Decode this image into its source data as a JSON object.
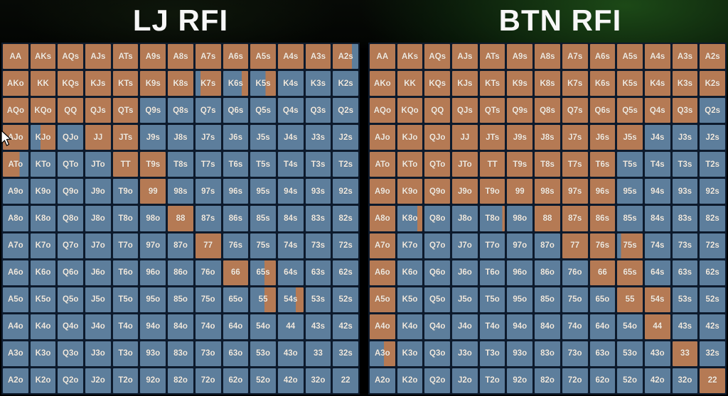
{
  "page": {
    "background": "#000000",
    "glow_color": "#1e5420"
  },
  "colors": {
    "raise": "#b57a54",
    "fold": "#5d7e9c",
    "grid_line": "#0d1a2c",
    "title_text": "#f7f7f7",
    "cell_text": "#f1eae0"
  },
  "cell_encoding": {
    "R": "raise (orange)",
    "F": "fold (blue)",
    "format": "hand|base or hand|base/stripColor:stripSide:stripFraction"
  },
  "chart_data": [
    {
      "type": "heatmap",
      "title": "LJ RFI",
      "rows": [
        [
          "AA|R",
          "AKs|R",
          "AQs|R",
          "AJs|R",
          "ATs|R",
          "A9s|R",
          "A8s|R",
          "A7s|R",
          "A6s|R",
          "A5s|R",
          "A4s|R",
          "A3s|R",
          "A2s|R/F:right:0.25"
        ],
        [
          "AKo|R",
          "KK|R",
          "KQs|R",
          "KJs|R",
          "KTs|R",
          "K9s|R",
          "K8s|R",
          "K7s|R/F:left:0.2",
          "K6s|F/R:right:0.25",
          "K5s|F/R:right:0.4",
          "K4s|F",
          "K3s|F",
          "K2s|F"
        ],
        [
          "AQo|R",
          "KQo|R",
          "QQ|R",
          "QJs|R",
          "QTs|R",
          "Q9s|F",
          "Q8s|F",
          "Q7s|F",
          "Q6s|F",
          "Q5s|F",
          "Q4s|F",
          "Q3s|F",
          "Q2s|F"
        ],
        [
          "AJo|R",
          "KJo|R/F:left:0.4",
          "QJo|F",
          "JJ|R",
          "JTs|R",
          "J9s|F",
          "J8s|F",
          "J7s|F",
          "J6s|F",
          "J5s|F",
          "J4s|F",
          "J3s|F",
          "J2s|F"
        ],
        [
          "ATo|R/F:right:0.35",
          "KTo|F",
          "QTo|F",
          "JTo|F",
          "TT|R",
          "T9s|R",
          "T8s|F",
          "T7s|F",
          "T6s|F",
          "T5s|F",
          "T4s|F",
          "T3s|F",
          "T2s|F"
        ],
        [
          "A9o|F",
          "K9o|F",
          "Q9o|F",
          "J9o|F",
          "T9o|F",
          "99|R",
          "98s|F",
          "97s|F",
          "96s|F",
          "95s|F",
          "94s|F",
          "93s|F",
          "92s|F"
        ],
        [
          "A8o|F",
          "K8o|F",
          "Q8o|F",
          "J8o|F",
          "T8o|F",
          "98o|F",
          "88|R",
          "87s|F",
          "86s|F",
          "85s|F",
          "84s|F",
          "83s|F",
          "82s|F"
        ],
        [
          "A7o|F",
          "K7o|F",
          "Q7o|F",
          "J7o|F",
          "T7o|F",
          "97o|F",
          "87o|F",
          "77|R",
          "76s|F",
          "75s|F",
          "74s|F",
          "73s|F",
          "72s|F"
        ],
        [
          "A6o|F",
          "K6o|F",
          "Q6o|F",
          "J6o|F",
          "T6o|F",
          "96o|F",
          "86o|F",
          "76o|F",
          "66|R",
          "65s|F/R:right:0.45",
          "64s|F",
          "63s|F",
          "62s|F"
        ],
        [
          "A5o|F",
          "K5o|F",
          "Q5o|F",
          "J5o|F",
          "T5o|F",
          "95o|F",
          "85o|F",
          "75o|F",
          "65o|F",
          "55|F/R:right:0.45",
          "54s|F/R:right:0.3",
          "53s|F",
          "52s|F"
        ],
        [
          "A4o|F",
          "K4o|F",
          "Q4o|F",
          "J4o|F",
          "T4o|F",
          "94o|F",
          "84o|F",
          "74o|F",
          "64o|F",
          "54o|F",
          "44|F",
          "43s|F",
          "42s|F"
        ],
        [
          "A3o|F",
          "K3o|F",
          "Q3o|F",
          "J3o|F",
          "T3o|F",
          "93o|F",
          "83o|F",
          "73o|F",
          "63o|F",
          "53o|F",
          "43o|F",
          "33|F",
          "32s|F"
        ],
        [
          "A2o|F",
          "K2o|F",
          "Q2o|F",
          "J2o|F",
          "T2o|F",
          "92o|F",
          "82o|F",
          "72o|F",
          "62o|F",
          "52o|F",
          "42o|F",
          "32o|F",
          "22|F"
        ]
      ]
    },
    {
      "type": "heatmap",
      "title": "BTN RFI",
      "rows": [
        [
          "AA|R",
          "AKs|R",
          "AQs|R",
          "AJs|R",
          "ATs|R",
          "A9s|R",
          "A8s|R",
          "A7s|R",
          "A6s|R",
          "A5s|R",
          "A4s|R",
          "A3s|R",
          "A2s|R"
        ],
        [
          "AKo|R",
          "KK|R",
          "KQs|R",
          "KJs|R",
          "KTs|R",
          "K9s|R",
          "K8s|R",
          "K7s|R",
          "K6s|R",
          "K5s|R",
          "K4s|R",
          "K3s|R",
          "K2s|R"
        ],
        [
          "AQo|R",
          "KQo|R",
          "QQ|R",
          "QJs|R",
          "QTs|R",
          "Q9s|R",
          "Q8s|R",
          "Q7s|R",
          "Q6s|R",
          "Q5s|R",
          "Q4s|R",
          "Q3s|R",
          "Q2s|F"
        ],
        [
          "AJo|R",
          "KJo|R",
          "QJo|R",
          "JJ|R",
          "JTs|R",
          "J9s|R",
          "J8s|R",
          "J7s|R",
          "J6s|R",
          "J5s|R",
          "J4s|F",
          "J3s|F",
          "J2s|F"
        ],
        [
          "ATo|R",
          "KTo|R",
          "QTo|R",
          "JTo|R",
          "TT|R",
          "T9s|R",
          "T8s|R",
          "T7s|R",
          "T6s|R",
          "T5s|F",
          "T4s|F",
          "T3s|F",
          "T2s|F"
        ],
        [
          "A9o|R",
          "K9o|R",
          "Q9o|R",
          "J9o|R",
          "T9o|R",
          "99|R",
          "98s|R",
          "97s|R",
          "96s|R",
          "95s|F",
          "94s|F",
          "93s|F",
          "92s|F"
        ],
        [
          "A8o|R",
          "K8o|F/R:right:0.2",
          "Q8o|F",
          "J8o|F",
          "T8o|F/R:right:0.1",
          "98o|F",
          "88|R",
          "87s|R",
          "86s|R",
          "85s|F",
          "84s|F",
          "83s|F",
          "82s|F"
        ],
        [
          "A7o|R",
          "K7o|F",
          "Q7o|F",
          "J7o|F",
          "T7o|F",
          "97o|F",
          "87o|F",
          "77|R",
          "76s|R",
          "75s|R/F:left:0.15",
          "74s|F",
          "73s|F",
          "72s|F"
        ],
        [
          "A6o|R",
          "K6o|F",
          "Q6o|F",
          "J6o|F",
          "T6o|F",
          "96o|F",
          "86o|F",
          "76o|F",
          "66|R",
          "65s|R",
          "64s|F",
          "63s|F",
          "62s|F"
        ],
        [
          "A5o|R",
          "K5o|F",
          "Q5o|F",
          "J5o|F",
          "T5o|F",
          "95o|F",
          "85o|F",
          "75o|F",
          "65o|F",
          "55|R",
          "54s|R",
          "53s|F",
          "52s|F"
        ],
        [
          "A4o|R",
          "K4o|F",
          "Q4o|F",
          "J4o|F",
          "T4o|F",
          "94o|F",
          "84o|F",
          "74o|F",
          "64o|F",
          "54o|F",
          "44|R",
          "43s|F",
          "42s|F"
        ],
        [
          "A3o|F/R:right:0.45",
          "K3o|F",
          "Q3o|F",
          "J3o|F",
          "T3o|F",
          "93o|F",
          "83o|F",
          "73o|F",
          "63o|F",
          "53o|F",
          "43o|F",
          "33|R",
          "32s|F"
        ],
        [
          "A2o|F",
          "K2o|F",
          "Q2o|F",
          "J2o|F",
          "T2o|F",
          "92o|F",
          "82o|F",
          "72o|F",
          "62o|F",
          "52o|F",
          "42o|F",
          "32o|F",
          "22|R"
        ]
      ]
    }
  ]
}
